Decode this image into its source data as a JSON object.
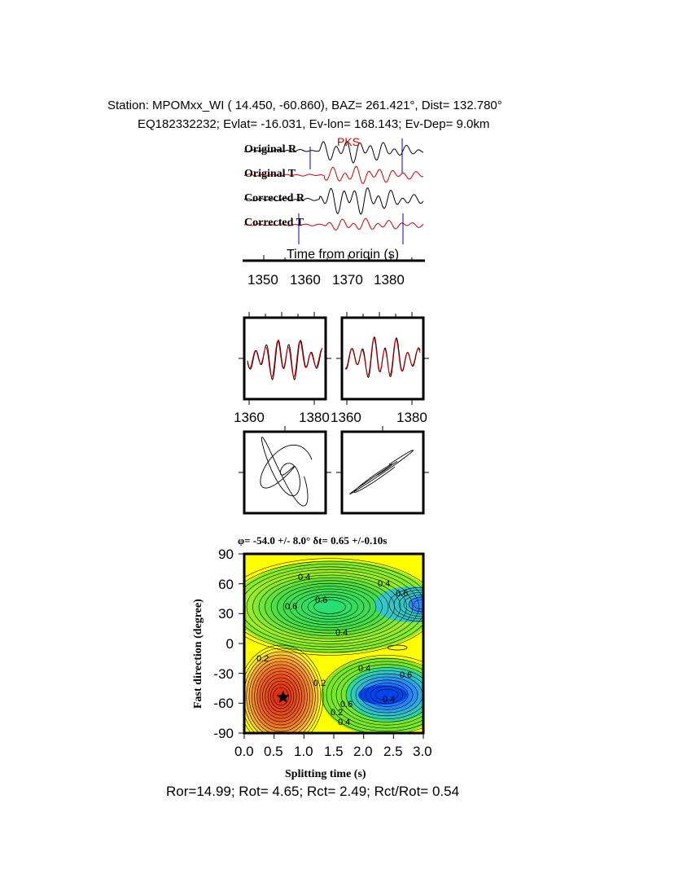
{
  "header": {
    "line1": "Station: MPOMxx_WI (  14.450,  -60.860), BAZ=  261.421°, Dist=  132.780°",
    "line2": "EQ182332232; Evlat= -16.031, Ev-lon= 168.143; Ev-Dep=  9.0km"
  },
  "traces": {
    "labels": [
      "Original R",
      "Original T",
      "Corrected R",
      "Corrected T"
    ],
    "phase": "PKS",
    "xlabel": "Time from origin (s)",
    "ticks": [
      "1350",
      "1360",
      "1370",
      "1380"
    ]
  },
  "waveforms": {
    "ticks_left": [
      "1360",
      "1380"
    ],
    "ticks_right": [
      "1360",
      "1380"
    ]
  },
  "grid": {
    "title": "φ= -54.0 +/- 8.0° δt= 0.65 +/-0.10s",
    "xlabel": "Splitting time (s)",
    "ylabel": "Fast direction (degree)",
    "xticks": [
      "0.0",
      "0.5",
      "1.0",
      "1.5",
      "2.0",
      "2.5",
      "3.0"
    ],
    "yticks": [
      "90",
      "60",
      "30",
      "0",
      "-30",
      "-60",
      "-90"
    ],
    "contour_labels": [
      "0.4",
      "0.4",
      "0.6",
      "0.6",
      "0.4",
      "0.2",
      "0.2",
      "0.4",
      "0.6",
      "0.2",
      "0.6",
      "0.4",
      "0.6",
      "0.4"
    ]
  },
  "footer": {
    "stats": "Ror=14.99; Rot= 4.65; Rct= 2.49; Rct/Rot= 0.54"
  },
  "colors": {
    "radial": "#000000",
    "transverse": "#cc0000",
    "marker": "#0000cc",
    "red_zone": "#e83a1a",
    "yellow_zone": "#ffff00",
    "green_zone": "#22dd55",
    "blue_zone": "#2277ff"
  },
  "chart_data": [
    {
      "type": "line",
      "title": "",
      "xlabel": "Time from origin (s)",
      "ylabel": "",
      "xlim": [
        1345,
        1387
      ],
      "series": [
        {
          "name": "Original R"
        },
        {
          "name": "Original T"
        },
        {
          "name": "Corrected R"
        },
        {
          "name": "Corrected T"
        }
      ],
      "annotations": [
        "PKS"
      ]
    },
    {
      "type": "heatmap",
      "title": "φ= -54.0 +/- 8.0° δt= 0.65 +/-0.10s",
      "xlabel": "Splitting time (s)",
      "ylabel": "Fast direction (degree)",
      "xlim": [
        0.0,
        3.0
      ],
      "ylim": [
        -90,
        90
      ],
      "best_fit": {
        "x": 0.65,
        "y": -54.0
      }
    }
  ]
}
